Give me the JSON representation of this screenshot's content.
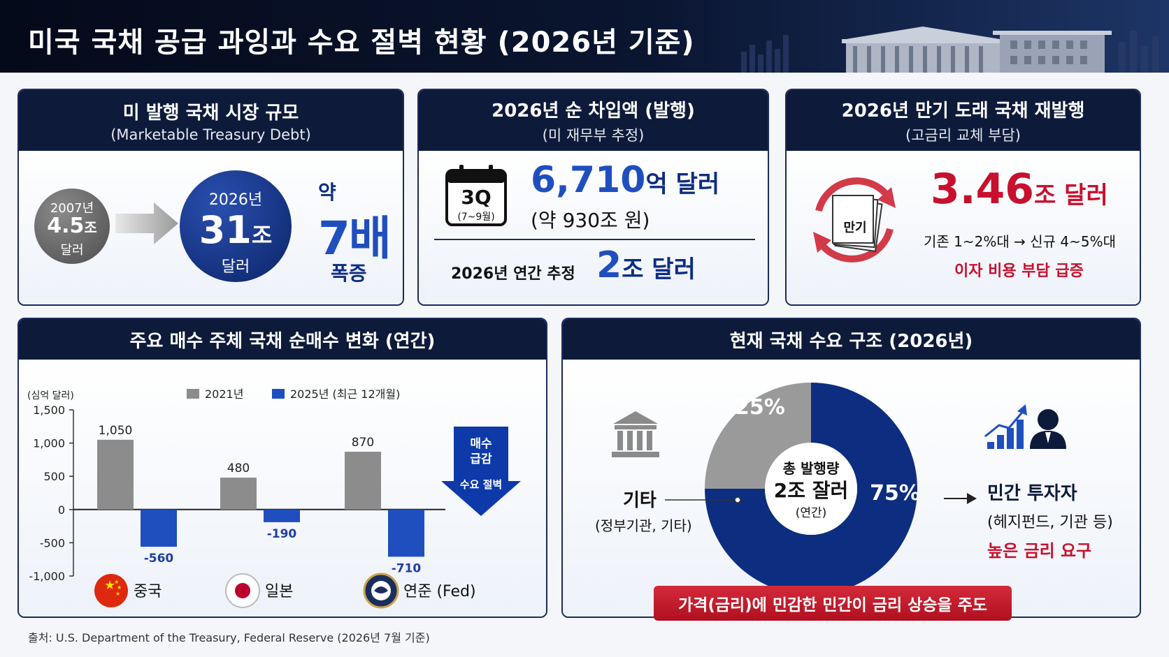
{
  "header": {
    "title": "미국 국채 공급 과잉과 수요 절벽 현황 (2026년 기준)"
  },
  "card_market": {
    "title": "미 발행 국채 시장 규모",
    "subtitle": "(Marketable Treasury Debt)",
    "past_year": "2007년",
    "past_value": "4.5",
    "past_unit": "조",
    "past_currency": "달러",
    "now_year": "2026년",
    "now_value": "31",
    "now_unit": "조",
    "now_currency": "달러",
    "growth_prefix": "약",
    "growth_value": "7배",
    "growth_suffix": "폭증"
  },
  "card_borrowing": {
    "title": "2026년 순 차입액 (발행)",
    "subtitle": "(미 재무부 추정)",
    "calendar_label": "3Q",
    "calendar_sub": "(7~9월)",
    "q_value": "6,710",
    "q_unit": "억 달러",
    "q_krw": "(약 930조 원)",
    "annual_label": "2026년 연간 추정",
    "annual_value": "2",
    "annual_unit": "조 달러"
  },
  "card_refinance": {
    "title": "2026년 만기 도래 국채 재발행",
    "subtitle": "(고금리 교체 부담)",
    "doc_label": "만기",
    "value": "3.46",
    "unit": "조 달러",
    "rate_note": "기존 1~2%대 → 신규 4~5%대",
    "warning": "이자 비용 부담 급증"
  },
  "chart_panel": {
    "title": "주요 매수 주체 국채 순매수 변화 (연간)"
  },
  "demand_panel": {
    "title": "현재 국채 수요 구조 (2026년)"
  },
  "chart_data": [
    {
      "type": "bar",
      "title": "주요 매수 주체 국채 순매수 변화 (연간)",
      "ylabel": "(심억 달러)",
      "ylim": [
        -1000,
        1500
      ],
      "yticks": [
        1500,
        1000,
        500,
        0,
        -500,
        -1000
      ],
      "yticklabels": [
        "1,500",
        "1,000",
        "500",
        "0",
        "-500",
        "-1,000"
      ],
      "categories": [
        "중국",
        "일본",
        "연준 (Fed)"
      ],
      "series": [
        {
          "name": "2021년",
          "color": "#8c8c8c",
          "values": [
            1050,
            480,
            870
          ],
          "labels": [
            "1,050",
            "480",
            "870"
          ]
        },
        {
          "name": "2025년 (최근 12개월)",
          "color": "#1f4fbf",
          "values": [
            -560,
            -190,
            -710
          ],
          "labels": [
            "-560",
            "-190",
            "-710"
          ]
        }
      ],
      "legend": "top",
      "annotation": {
        "line1": "매수",
        "line2": "급감",
        "line3": "수요 절벽"
      },
      "icons": [
        "china-flag-icon",
        "japan-flag-icon",
        "fed-seal-icon"
      ]
    },
    {
      "type": "pie",
      "title": "현재 국채 수요 구조 (2026년)",
      "slices": [
        {
          "name": "기타",
          "value": 25,
          "label": "25%",
          "color": "#9a9a9a"
        },
        {
          "name": "민간 투자자",
          "value": 75,
          "label": "75%",
          "color": "#0d2d80"
        }
      ],
      "center_line1": "총 발행량",
      "center_line2": "2조 잘러",
      "center_line3": "(연간)",
      "left_label": "기타",
      "left_sub": "(정부기관, 기타)",
      "right_label": "민간 투자자",
      "right_sub": "(헤지펀드, 기관 등)",
      "right_note": "높은 금리 요구",
      "banner": "가격(금리)에 민감한 민간이 금리 상승을 주도"
    }
  ],
  "footer": {
    "source": "출처: U.S. Department of the Treasury, Federal Reserve (2026년 7월 기준)"
  }
}
